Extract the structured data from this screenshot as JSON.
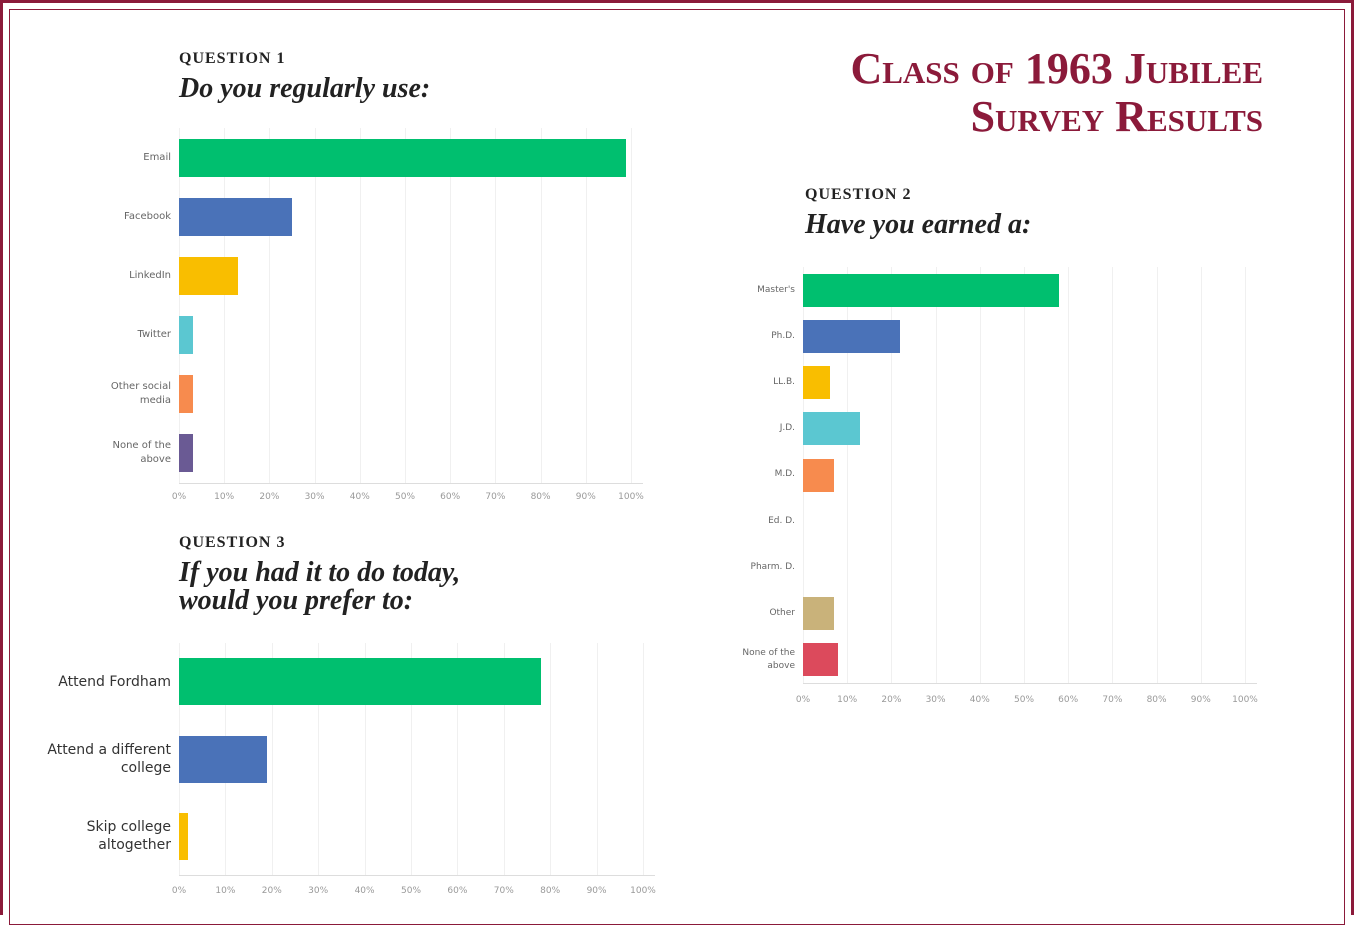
{
  "title": "Class of 1963 Jubilee Survey Results",
  "chart_data": [
    {
      "type": "hbar",
      "label": "QUESTION 1",
      "title": "Do you regularly use:",
      "categories": [
        "Email",
        "Facebook",
        "LinkedIn",
        "Twitter",
        "Other social media",
        "None of the above"
      ],
      "values": [
        99,
        25,
        13,
        3,
        3,
        3
      ],
      "colors": [
        "#00bf6f",
        "#4a72b8",
        "#f9be00",
        "#5bc7d1",
        "#f78b4e",
        "#6a5a94"
      ],
      "xlim": [
        0,
        100
      ],
      "xticks": [
        {
          "value": 0,
          "label": "0%"
        },
        {
          "value": 10,
          "label": "10%"
        },
        {
          "value": 20,
          "label": "20%"
        },
        {
          "value": 30,
          "label": "30%"
        },
        {
          "value": 40,
          "label": "40%"
        },
        {
          "value": 50,
          "label": "50%"
        },
        {
          "value": 60,
          "label": "60%"
        },
        {
          "value": 70,
          "label": "70%"
        },
        {
          "value": 80,
          "label": "80%"
        },
        {
          "value": 90,
          "label": "90%"
        },
        {
          "value": 100,
          "label": "100%"
        }
      ],
      "grid": true
    },
    {
      "type": "hbar",
      "label": "QUESTION 2",
      "title": "Have you earned a:",
      "categories": [
        "Master's",
        "Ph.D.",
        "LL.B.",
        "J.D.",
        "M.D.",
        "Ed. D.",
        "Pharm. D.",
        "Other",
        "None of the above"
      ],
      "values": [
        58,
        22,
        6,
        13,
        7,
        0,
        0,
        7,
        8
      ],
      "colors": [
        "#00bf6f",
        "#4a72b8",
        "#f9be00",
        "#5bc7d1",
        "#f78b4e",
        "#6a5a94",
        "#a0a0a0",
        "#c9b27a",
        "#dc4a5c"
      ],
      "xlim": [
        0,
        100
      ],
      "xticks": [
        {
          "value": 0,
          "label": "0%"
        },
        {
          "value": 10,
          "label": "10%"
        },
        {
          "value": 20,
          "label": "20%"
        },
        {
          "value": 30,
          "label": "30%"
        },
        {
          "value": 40,
          "label": "40%"
        },
        {
          "value": 50,
          "label": "50%"
        },
        {
          "value": 60,
          "label": "60%"
        },
        {
          "value": 70,
          "label": "70%"
        },
        {
          "value": 80,
          "label": "80%"
        },
        {
          "value": 90,
          "label": "90%"
        },
        {
          "value": 100,
          "label": "100%"
        }
      ],
      "grid": true
    },
    {
      "type": "hbar",
      "label": "QUESTION 3",
      "title": "If you had it to do today, would you prefer to:",
      "categories": [
        "Attend Fordham",
        "Attend a different college",
        "Skip college altogether"
      ],
      "values": [
        78,
        19,
        2
      ],
      "colors": [
        "#00bf6f",
        "#4a72b8",
        "#f9be00"
      ],
      "xlim": [
        0,
        100
      ],
      "xticks": [
        {
          "value": 0,
          "label": "0%"
        },
        {
          "value": 10,
          "label": "10%"
        },
        {
          "value": 20,
          "label": "20%"
        },
        {
          "value": 30,
          "label": "30%"
        },
        {
          "value": 40,
          "label": "40%"
        },
        {
          "value": 50,
          "label": "50%"
        },
        {
          "value": 60,
          "label": "60%"
        },
        {
          "value": 70,
          "label": "70%"
        },
        {
          "value": 80,
          "label": "80%"
        },
        {
          "value": 90,
          "label": "90%"
        },
        {
          "value": 100,
          "label": "100%"
        }
      ],
      "grid": true
    }
  ]
}
